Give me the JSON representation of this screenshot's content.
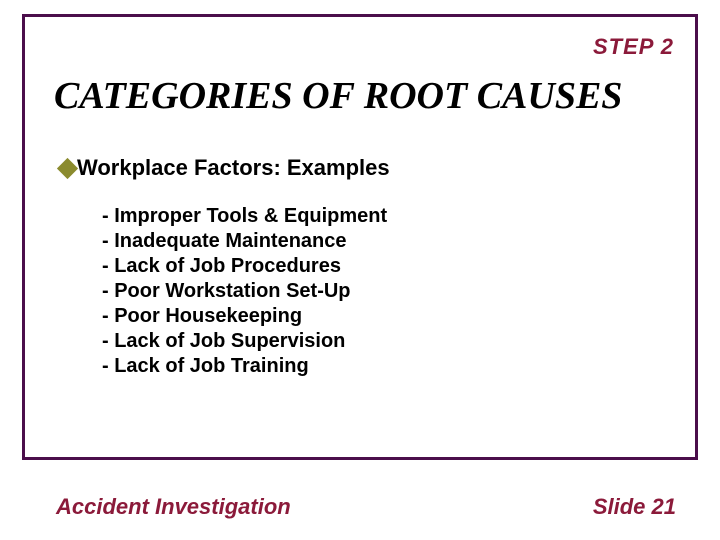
{
  "step_label": "STEP  2",
  "title": "CATEGORIES OF ROOT CAUSES",
  "section_heading": "Workplace Factors:  Examples",
  "items": [
    "- Improper Tools & Equipment",
    "- Inadequate Maintenance",
    "- Lack of Job Procedures",
    "- Poor Workstation Set-Up",
    "- Poor Housekeeping",
    "- Lack of Job Supervision",
    "- Lack of Job Training"
  ],
  "footer_left": "Accident Investigation",
  "footer_right": "Slide 21",
  "colors": {
    "border": "#4b0e4b",
    "accent_text": "#8b1a3a",
    "bullet": "#8b8b2e",
    "body_text": "#000000",
    "background": "#ffffff"
  }
}
